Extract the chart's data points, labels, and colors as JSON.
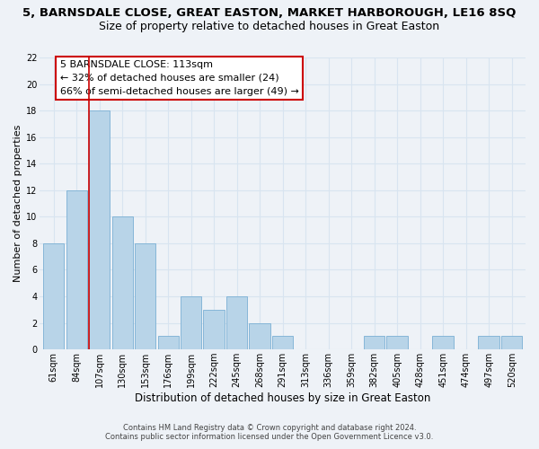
{
  "title": "5, BARNSDALE CLOSE, GREAT EASTON, MARKET HARBOROUGH, LE16 8SQ",
  "subtitle": "Size of property relative to detached houses in Great Easton",
  "xlabel": "Distribution of detached houses by size in Great Easton",
  "ylabel": "Number of detached properties",
  "bar_color": "#b8d4e8",
  "bar_edge_color": "#7aafd4",
  "vline_color": "#cc0000",
  "vline_index": 2,
  "bin_labels": [
    "61sqm",
    "84sqm",
    "107sqm",
    "130sqm",
    "153sqm",
    "176sqm",
    "199sqm",
    "222sqm",
    "245sqm",
    "268sqm",
    "291sqm",
    "313sqm",
    "336sqm",
    "359sqm",
    "382sqm",
    "405sqm",
    "428sqm",
    "451sqm",
    "474sqm",
    "497sqm",
    "520sqm"
  ],
  "bar_heights": [
    8,
    12,
    18,
    10,
    8,
    1,
    4,
    3,
    4,
    2,
    1,
    0,
    0,
    0,
    1,
    1,
    0,
    1,
    0,
    1,
    1
  ],
  "ylim": [
    0,
    22
  ],
  "yticks": [
    0,
    2,
    4,
    6,
    8,
    10,
    12,
    14,
    16,
    18,
    20,
    22
  ],
  "annotation_title": "5 BARNSDALE CLOSE: 113sqm",
  "annotation_line1": "← 32% of detached houses are smaller (24)",
  "annotation_line2": "66% of semi-detached houses are larger (49) →",
  "annotation_box_color": "#ffffff",
  "annotation_box_edge": "#cc0000",
  "footer1": "Contains HM Land Registry data © Crown copyright and database right 2024.",
  "footer2": "Contains public sector information licensed under the Open Government Licence v3.0.",
  "background_color": "#eef2f7",
  "grid_color": "#d8e4f0",
  "title_fontsize": 9.5,
  "subtitle_fontsize": 9,
  "ylabel_fontsize": 8,
  "xlabel_fontsize": 8.5,
  "tick_fontsize": 7,
  "annotation_fontsize": 8,
  "footer_fontsize": 6
}
